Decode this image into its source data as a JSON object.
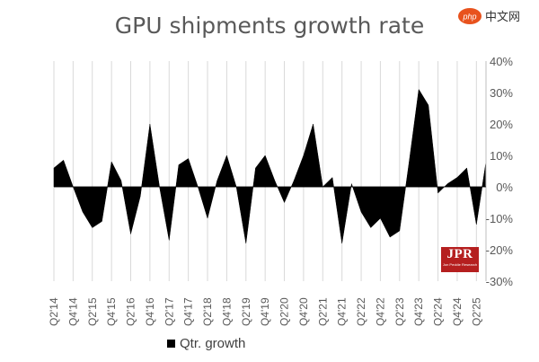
{
  "chart_data": {
    "type": "area",
    "title": "GPU shipments growth rate",
    "series": [
      {
        "name": "Qtr. growth",
        "values": [
          6,
          8.5,
          0,
          -8,
          -13,
          -11,
          8,
          2,
          -15,
          -3,
          20,
          0,
          -17,
          7,
          9,
          0,
          -10,
          2,
          10,
          0,
          -18,
          6,
          10,
          2,
          -5,
          2,
          10,
          20,
          0,
          3,
          -18,
          1,
          -8,
          -13,
          -10,
          -16,
          -14,
          8,
          31,
          26,
          -2,
          1,
          3,
          6,
          -12,
          8
        ]
      }
    ],
    "x_tick_labels": [
      "Q2'14",
      "Q4'14",
      "Q2'15",
      "Q4'15",
      "Q2'16",
      "Q4'16",
      "Q2'17",
      "Q4'17",
      "Q2'18",
      "Q4'18",
      "Q2'19",
      "Q4'19",
      "Q2'20",
      "Q4'20",
      "Q2'21",
      "Q4'21",
      "Q2'22",
      "Q4'22",
      "Q2'23",
      "Q4'23",
      "Q2'24",
      "Q4'24",
      "Q2'25"
    ],
    "y_tick_labels": [
      "40%",
      "30%",
      "20%",
      "10%",
      "0%",
      "-10%",
      "-20%",
      "-30%"
    ],
    "ylim": [
      -30,
      40
    ],
    "y_step": 10,
    "grid": "vertical",
    "legend": "bottom-left",
    "fill_color": "#000000",
    "grid_color": "#d9d9d9",
    "text_color": "#595959"
  },
  "watermark": {
    "brand": "php中文网",
    "logo_text": "JPR",
    "logo_subtext": "Jon Peddie Research",
    "logo_color": "#b51f1f"
  }
}
